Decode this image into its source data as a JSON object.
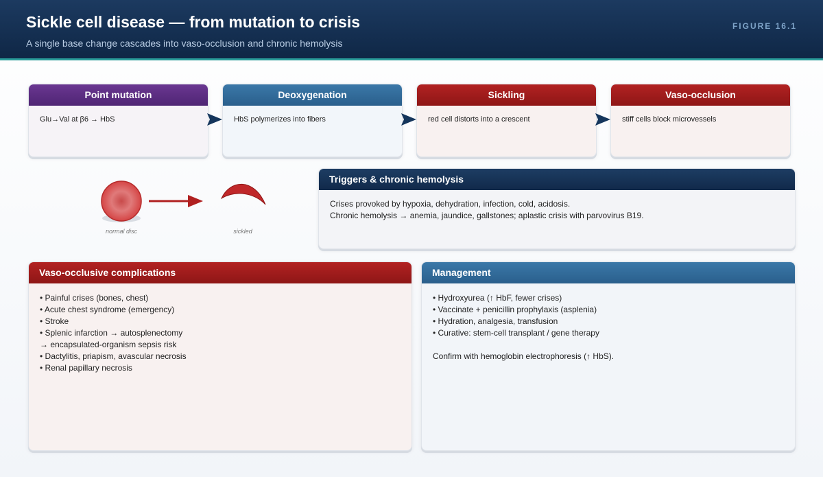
{
  "header": {
    "title": "Sickle cell disease — from mutation to crisis",
    "subtitle": "A single base change cascades into vaso-occlusion and chronic hemolysis",
    "figure_label": "FIGURE 16.1"
  },
  "steps": [
    {
      "title": "Point mutation",
      "text": "Glu→Val at β6 → HbS"
    },
    {
      "title": "Deoxygenation",
      "text": "HbS polymerizes into fibers"
    },
    {
      "title": "Sickling",
      "text": "red cell distorts into a crescent"
    },
    {
      "title": "Vaso-occlusion",
      "text": "stiff cells block microvessels"
    }
  ],
  "illustration": {
    "normal_label": "normal disc",
    "sickled_label": "sickled"
  },
  "triggers": {
    "title": "Triggers & chronic hemolysis",
    "lines": [
      "Crises provoked by hypoxia, dehydration, infection, cold, acidosis.",
      "Chronic hemolysis → anemia, jaundice, gallstones; aplastic crisis with parvovirus B19."
    ]
  },
  "complications": {
    "title": "Vaso-occlusive complications",
    "lines": [
      "• Painful crises (bones, chest)",
      "• Acute chest syndrome (emergency)",
      "• Stroke",
      "• Splenic infarction → autosplenectomy",
      "→ encapsulated-organism sepsis risk",
      "• Dactylitis, priapism, avascular necrosis",
      "• Renal papillary necrosis"
    ]
  },
  "management": {
    "title": "Management",
    "lines": [
      "• Hydroxyurea (↑ HbF, fewer crises)",
      "• Vaccinate + penicillin prophylaxis (asplenia)",
      "• Hydration, analgesia, transfusion",
      "• Curative: stem-cell transplant / gene therapy"
    ],
    "note": "Confirm with hemoglobin electrophoresis (↑ HbS)."
  }
}
